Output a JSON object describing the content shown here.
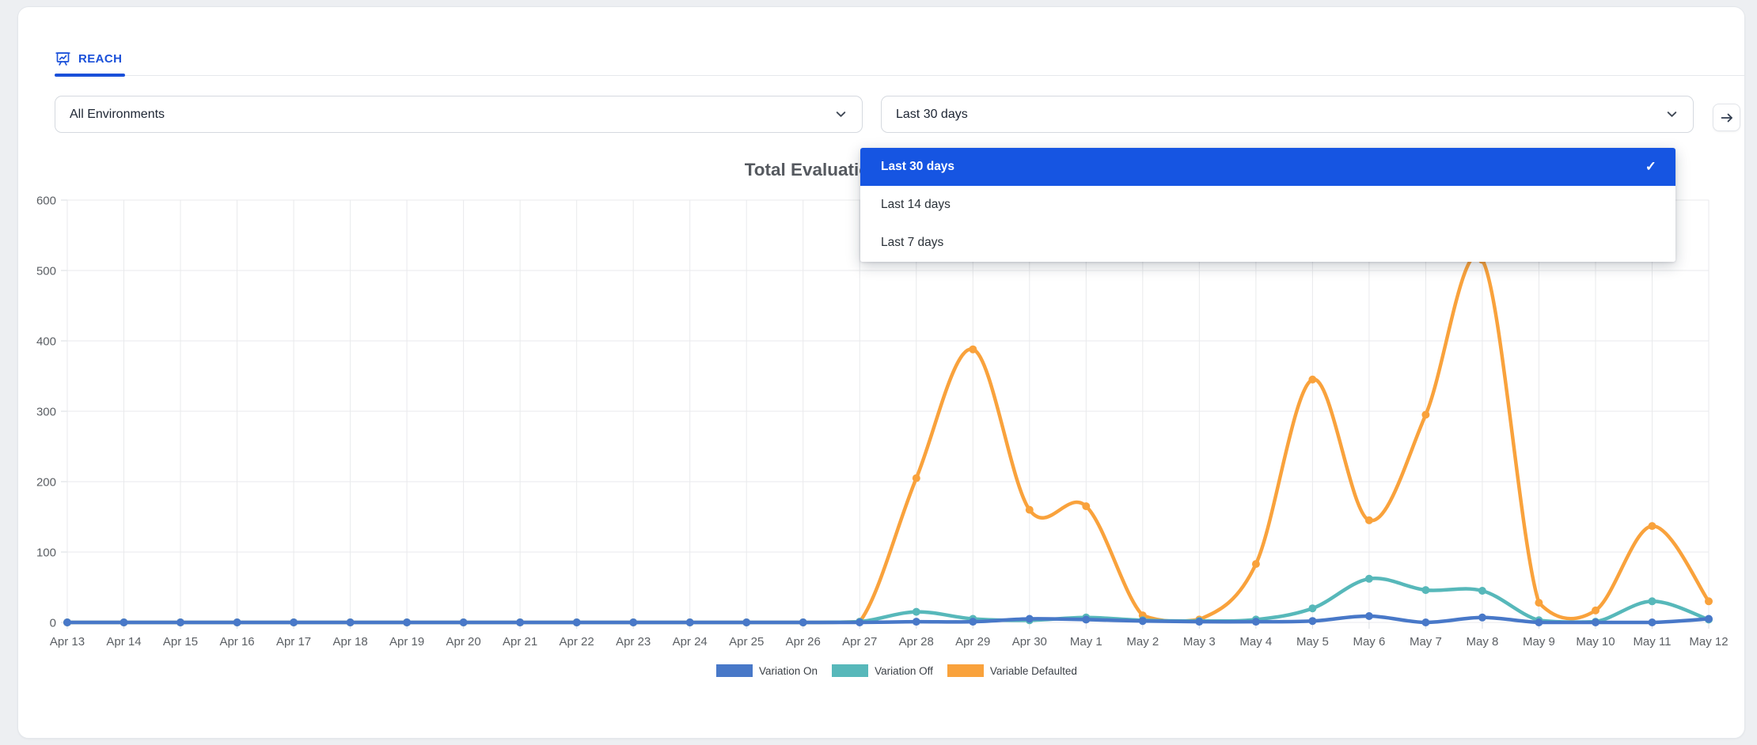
{
  "tabs": {
    "reach": {
      "label": "REACH"
    }
  },
  "filters": {
    "environment": {
      "value": "All Environments"
    },
    "date_range": {
      "value": "Last 30 days"
    }
  },
  "date_menu": {
    "items": [
      {
        "label": "Last 30 days",
        "selected": true
      },
      {
        "label": "Last 14 days",
        "selected": false
      },
      {
        "label": "Last 7 days",
        "selected": false
      }
    ]
  },
  "icons": {
    "tab": "presentation-chart-icon",
    "select_chevron": "chevron-down-icon",
    "forward": "arrow-right-icon",
    "selected_check": "check-icon"
  },
  "colors": {
    "accent_blue": "#1a50d9",
    "menu_selected_bg": "#1655e2",
    "grid": "#e9eaec",
    "axis_text": "#5b5f64"
  },
  "chart_data": {
    "type": "line",
    "title": "Total Evaluations",
    "x": [
      "Apr 13",
      "Apr 14",
      "Apr 15",
      "Apr 16",
      "Apr 17",
      "Apr 18",
      "Apr 19",
      "Apr 20",
      "Apr 21",
      "Apr 22",
      "Apr 23",
      "Apr 24",
      "Apr 25",
      "Apr 26",
      "Apr 27",
      "Apr 28",
      "Apr 29",
      "Apr 30",
      "May 1",
      "May 2",
      "May 3",
      "May 4",
      "May 5",
      "May 6",
      "May 7",
      "May 8",
      "May 9",
      "May 10",
      "May 11",
      "May 12"
    ],
    "series": [
      {
        "name": "Variation On",
        "color": "#4878c8",
        "values": [
          0,
          0,
          0,
          0,
          0,
          0,
          0,
          0,
          0,
          0,
          0,
          0,
          0,
          0,
          0,
          1,
          1,
          5,
          4,
          2,
          1,
          1,
          2,
          9,
          0,
          7,
          0,
          0,
          0,
          5
        ]
      },
      {
        "name": "Variation Off",
        "color": "#57b8ba",
        "values": [
          0,
          0,
          0,
          0,
          0,
          0,
          0,
          0,
          0,
          0,
          0,
          0,
          0,
          0,
          1,
          15,
          5,
          3,
          7,
          3,
          2,
          4,
          20,
          62,
          46,
          45,
          3,
          1,
          30,
          4
        ]
      },
      {
        "name": "Variable Defaulted",
        "color": "#f9a23c",
        "values": [
          0,
          0,
          0,
          0,
          0,
          0,
          0,
          0,
          0,
          0,
          0,
          0,
          0,
          0,
          1,
          205,
          388,
          160,
          165,
          10,
          4,
          83,
          345,
          145,
          295,
          515,
          28,
          17,
          137,
          30
        ]
      }
    ],
    "ylim": [
      0,
      600
    ],
    "yticks": [
      0,
      100,
      200,
      300,
      400,
      500,
      600
    ],
    "grid": true,
    "legend_position": "bottom"
  }
}
